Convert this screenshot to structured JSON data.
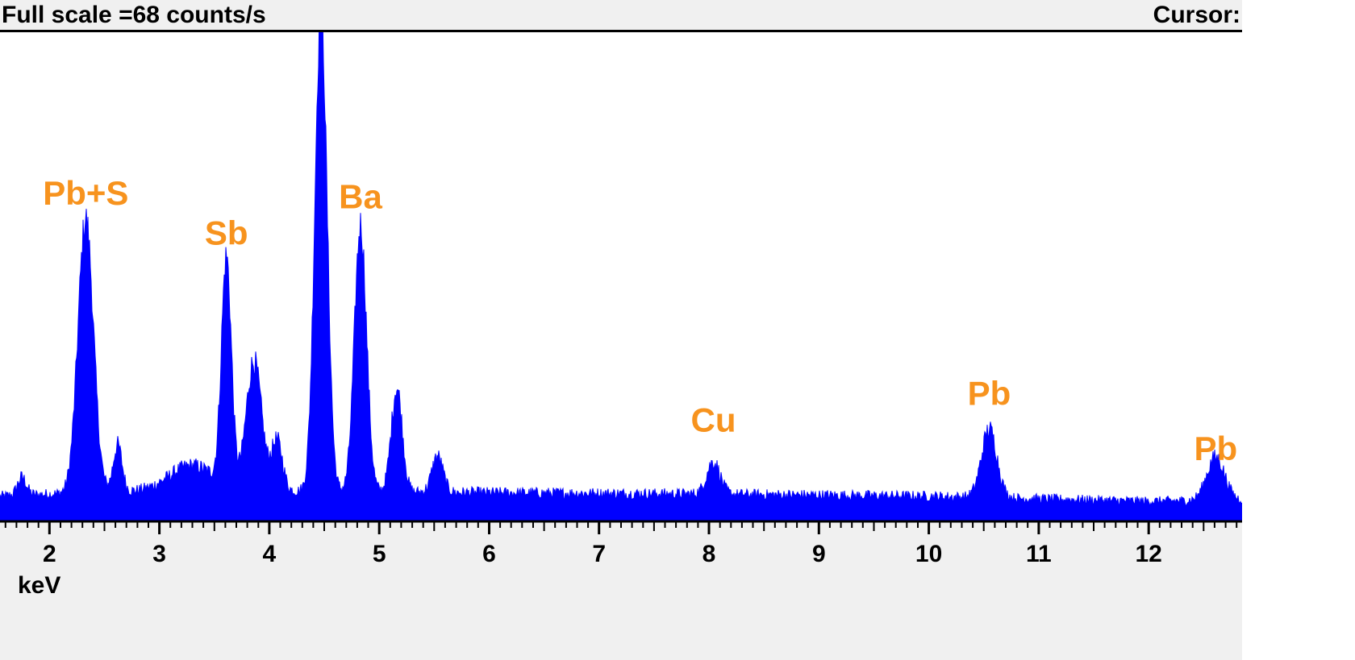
{
  "header": {
    "full_scale": "Full scale =68  counts/s",
    "cursor": "Cursor:"
  },
  "chart_data": {
    "type": "area",
    "title": "",
    "xlabel": "keV",
    "ylabel": "",
    "xlim": [
      1.55,
      12.85
    ],
    "ylim": [
      0,
      68
    ],
    "full_scale_counts": 68,
    "grid": false,
    "color": "#0000ff",
    "label_color": "#f7931e",
    "x_ticks": [
      2,
      3,
      4,
      5,
      6,
      7,
      8,
      9,
      10,
      11,
      12
    ],
    "baseline": [
      [
        1.55,
        3.5
      ],
      [
        2.0,
        3.8
      ],
      [
        3.0,
        4.3
      ],
      [
        4.0,
        4.2
      ],
      [
        6.0,
        4.0
      ],
      [
        8.0,
        3.8
      ],
      [
        10.0,
        3.5
      ],
      [
        12.0,
        2.8
      ],
      [
        12.85,
        3.0
      ]
    ],
    "peaks": [
      {
        "center": 1.75,
        "height": 2.5,
        "width": 0.04
      },
      {
        "center": 2.33,
        "height": 38.0,
        "width": 0.07
      },
      {
        "center": 2.62,
        "height": 6.5,
        "width": 0.04
      },
      {
        "center": 3.3,
        "height": 3.5,
        "width": 0.2
      },
      {
        "center": 3.61,
        "height": 31.5,
        "width": 0.045
      },
      {
        "center": 3.86,
        "height": 18.0,
        "width": 0.07
      },
      {
        "center": 4.07,
        "height": 7.0,
        "width": 0.05
      },
      {
        "center": 4.47,
        "height": 67.0,
        "width": 0.055
      },
      {
        "center": 4.83,
        "height": 37.0,
        "width": 0.055
      },
      {
        "center": 5.16,
        "height": 14.5,
        "width": 0.05
      },
      {
        "center": 5.53,
        "height": 5.0,
        "width": 0.05
      },
      {
        "center": 8.04,
        "height": 4.5,
        "width": 0.06
      },
      {
        "center": 10.55,
        "height": 9.5,
        "width": 0.07
      },
      {
        "center": 12.61,
        "height": 6.0,
        "width": 0.08
      }
    ],
    "annotations": [
      {
        "text": "Pb+S",
        "x": 2.33,
        "y": 44
      },
      {
        "text": "Sb",
        "x": 3.61,
        "y": 38.5
      },
      {
        "text": "Ba",
        "x": 4.83,
        "y": 43.5
      },
      {
        "text": "Cu",
        "x": 8.04,
        "y": 12.5
      },
      {
        "text": "Pb",
        "x": 10.55,
        "y": 16.2
      },
      {
        "text": "Pb",
        "x": 12.61,
        "y": 8.5
      }
    ]
  }
}
